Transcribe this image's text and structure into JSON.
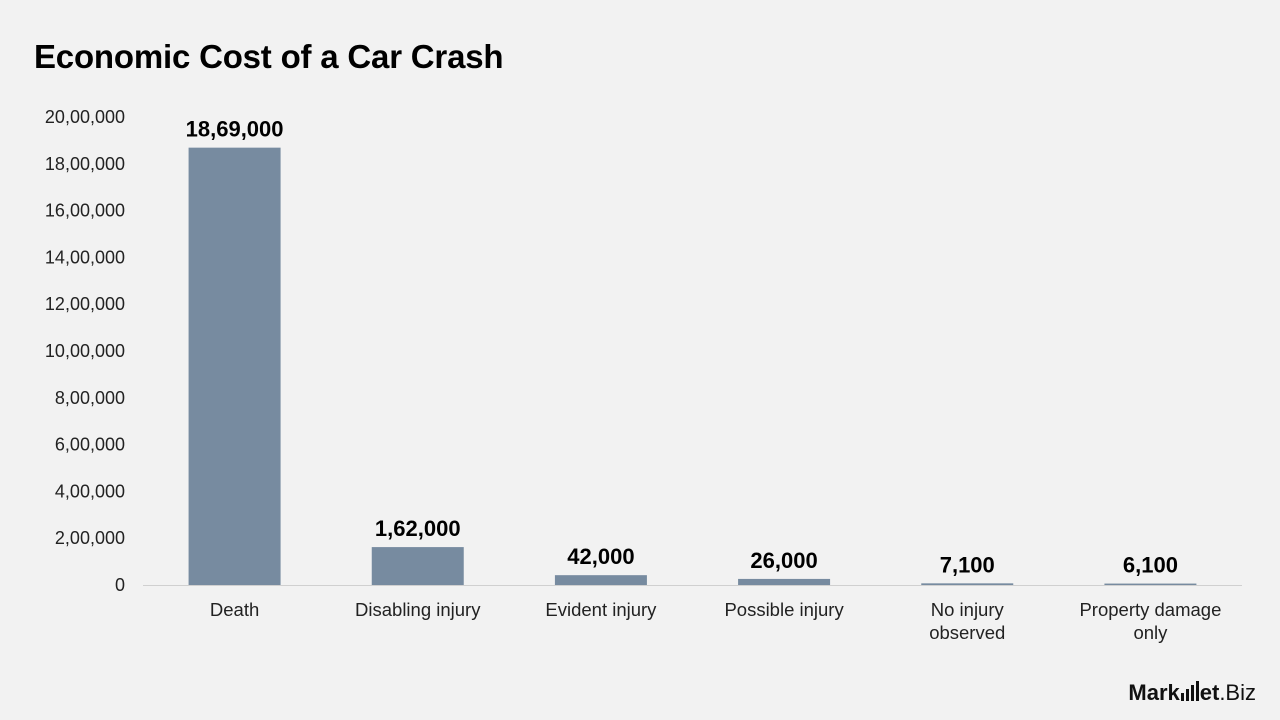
{
  "chart_data": {
    "type": "bar",
    "title": "Economic Cost of a Car Crash",
    "categories": [
      "Death",
      "Disabling injury",
      "Evident injury",
      "Possible injury",
      "No injury observed",
      "Property damage only"
    ],
    "values": [
      1869000,
      162000,
      42000,
      26000,
      7100,
      6100
    ],
    "data_labels": [
      "18,69,000",
      "1,62,000",
      "42,000",
      "26,000",
      "7,100",
      "6,100"
    ],
    "yticks": [
      0,
      200000,
      400000,
      600000,
      800000,
      1000000,
      1200000,
      1400000,
      1600000,
      1800000,
      2000000
    ],
    "ytick_labels": [
      "0",
      "2,00,000",
      "4,00,000",
      "6,00,000",
      "8,00,000",
      "10,00,000",
      "12,00,000",
      "14,00,000",
      "16,00,000",
      "18,00,000",
      "20,00,000"
    ],
    "ylim": [
      0,
      2000000
    ],
    "grid": false,
    "bar_color": "#778ba0"
  },
  "brand": {
    "logo_left": "Mark",
    "logo_mid": "et",
    "logo_right": ".Biz"
  }
}
